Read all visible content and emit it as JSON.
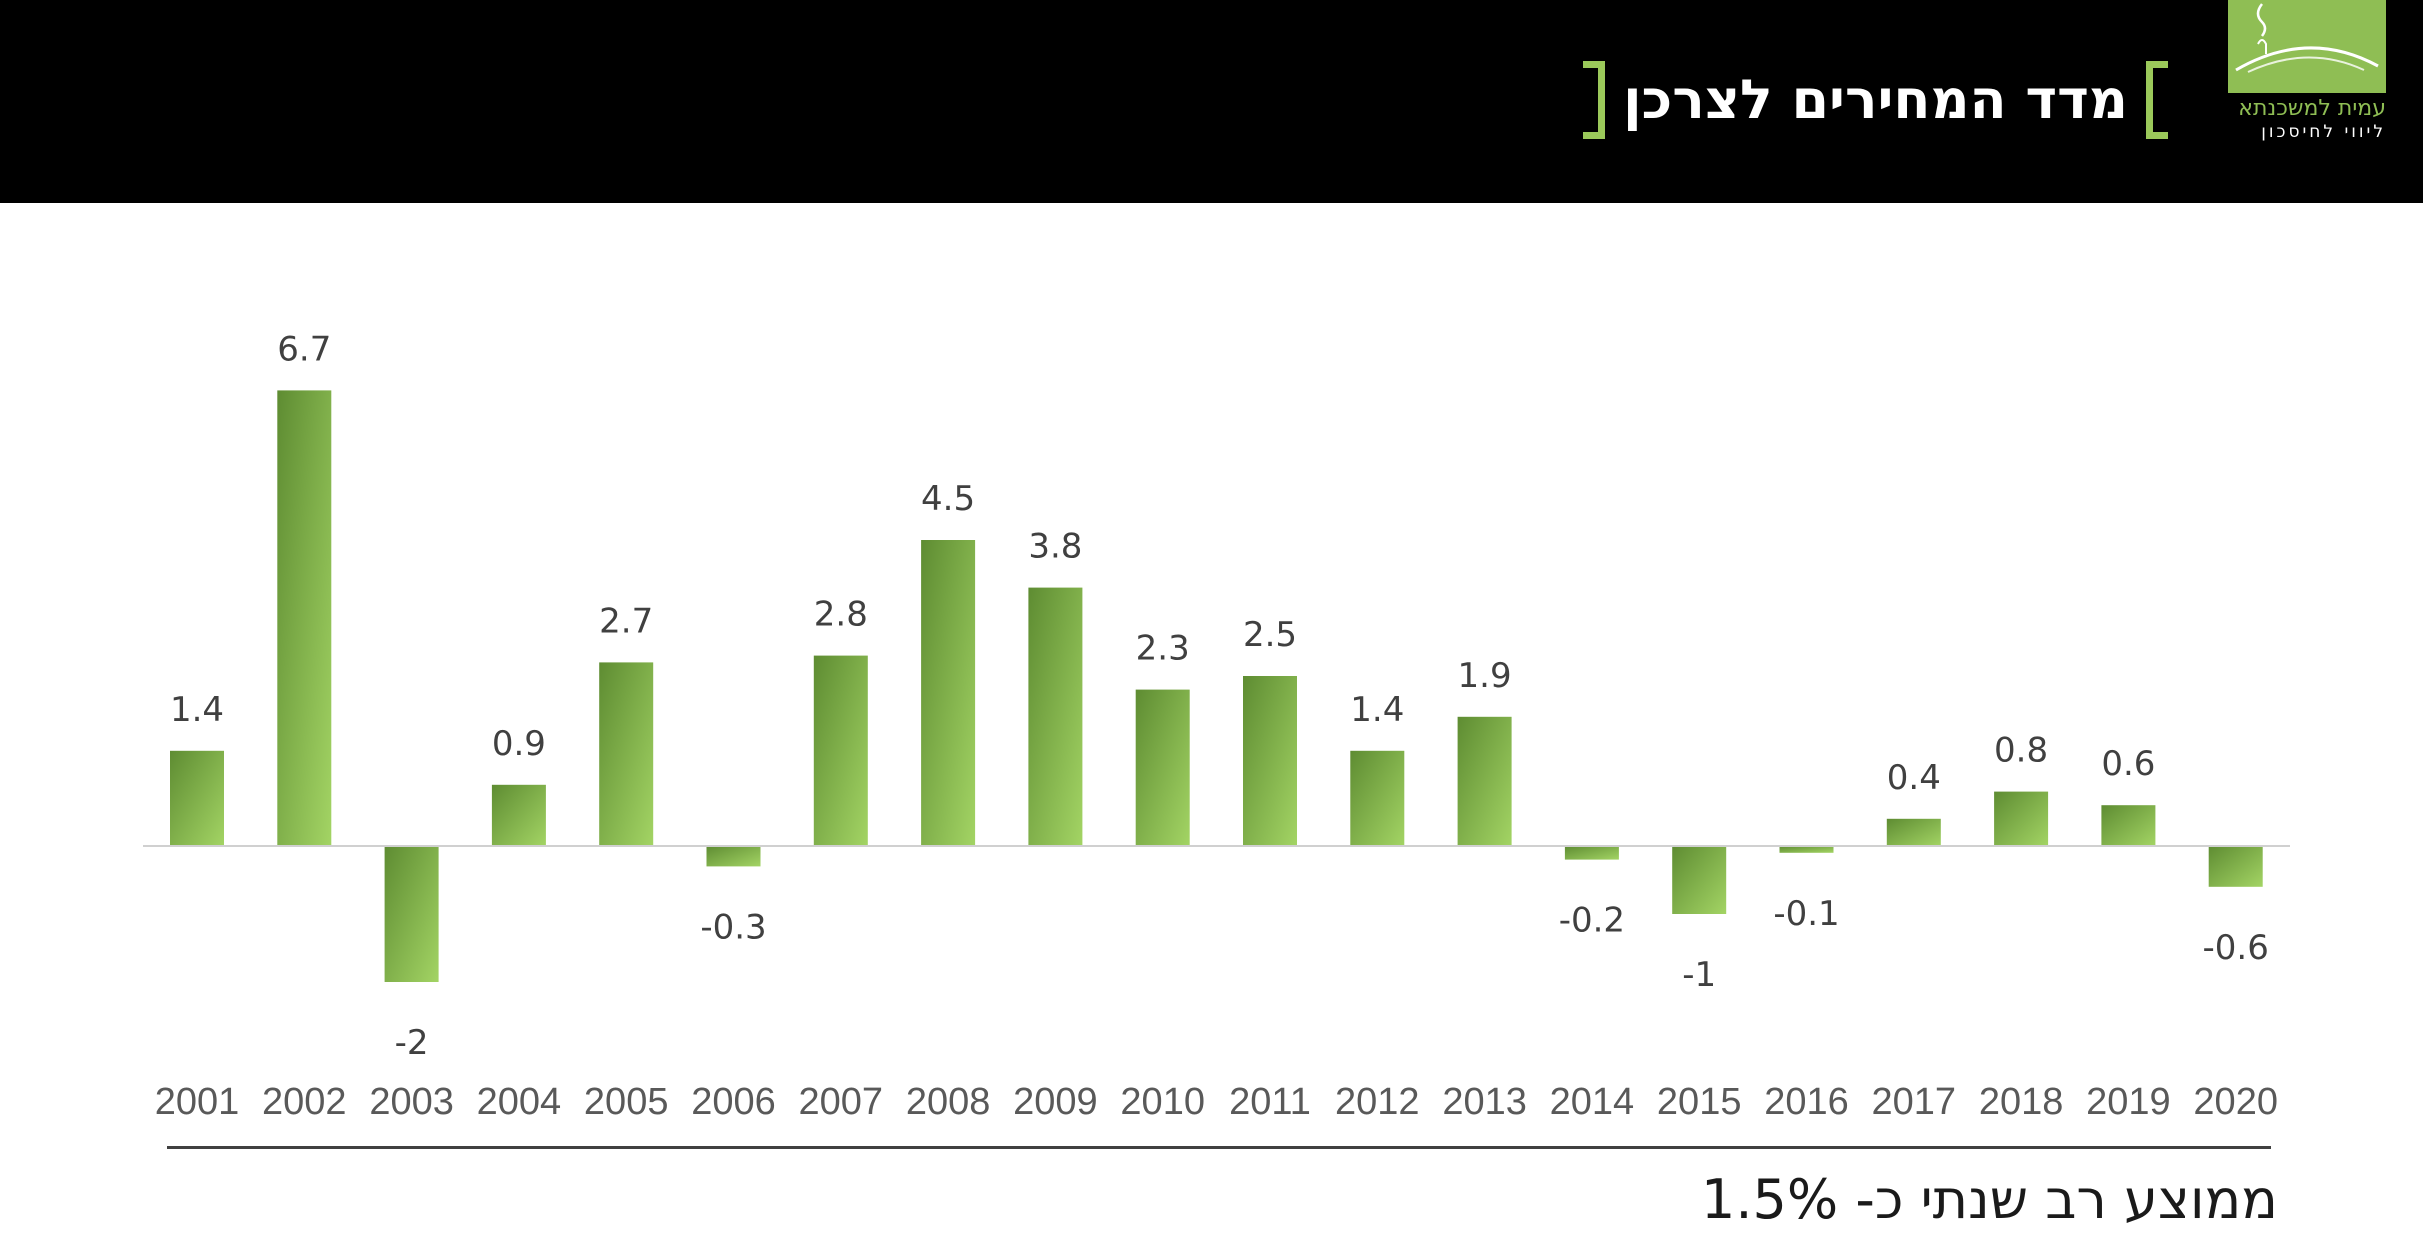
{
  "header": {
    "title": "מדד המחירים לצרכן",
    "logo": {
      "name": "עמית למשכנתא",
      "tagline": "ליווי לחיסכון"
    }
  },
  "colors": {
    "header_bg": "#000000",
    "accent": "#9bc95a",
    "bar_light": "#a3d464",
    "bar_dark": "#5e8c32"
  },
  "chart_data": {
    "type": "bar",
    "categories": [
      "2001",
      "2002",
      "2003",
      "2004",
      "2005",
      "2006",
      "2007",
      "2008",
      "2009",
      "2010",
      "2011",
      "2012",
      "2013",
      "2014",
      "2015",
      "2016",
      "2017",
      "2018",
      "2019",
      "2020"
    ],
    "values": [
      1.4,
      6.7,
      -2,
      0.9,
      2.7,
      -0.3,
      2.8,
      4.5,
      3.8,
      2.3,
      2.5,
      1.4,
      1.9,
      -0.2,
      -1,
      -0.1,
      0.4,
      0.8,
      0.6,
      -0.6
    ],
    "data_labels": true,
    "grid": false,
    "legend": "none"
  },
  "footer": {
    "note": "ממוצע רב שנתי כ- 1.5%"
  }
}
